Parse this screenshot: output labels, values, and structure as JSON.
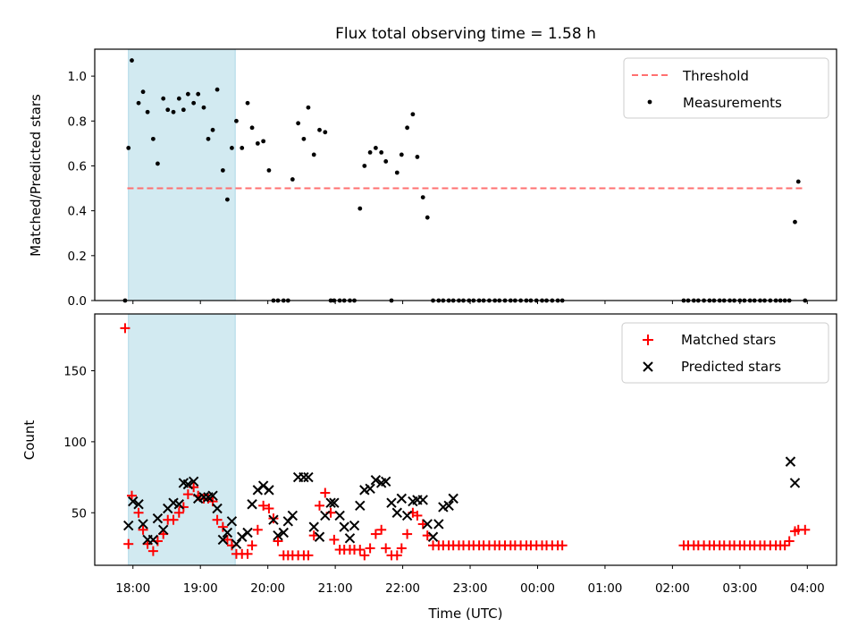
{
  "figure": {
    "title": "Flux total observing time = 1.58 h"
  },
  "colors": {
    "highlight": "#add8e6",
    "threshold": "#ff7070",
    "measurement": "#000000",
    "matched": "#ff0000",
    "predicted": "#000000"
  },
  "chart_data": [
    {
      "type": "scatter",
      "title": "Flux total observing time = 1.58 h",
      "xlabel": "",
      "ylabel": "Matched/Predicted stars",
      "xlim": [
        "17:26",
        "04:26"
      ],
      "ylim": [
        0,
        1.12
      ],
      "yticks": [
        "0.0",
        "0.2",
        "0.4",
        "0.6",
        "0.8",
        "1.0"
      ],
      "highlight_span": [
        "17:56",
        "19:31"
      ],
      "legend": {
        "position": "top-right",
        "entries": [
          "Threshold",
          "Measurements"
        ]
      },
      "threshold": {
        "name": "Threshold",
        "y": 0.5,
        "x_from": "17:55",
        "x_to": "03:58"
      },
      "series": [
        {
          "name": "Measurements",
          "x": [
            "17:53",
            "17:56",
            "17:59",
            "18:05",
            "18:09",
            "18:13",
            "18:18",
            "18:22",
            "18:27",
            "18:31",
            "18:36",
            "18:41",
            "18:45",
            "18:49",
            "18:54",
            "18:58",
            "19:03",
            "19:07",
            "19:11",
            "19:15",
            "19:20",
            "19:24",
            "19:28",
            "19:32",
            "19:37",
            "19:42",
            "19:46",
            "19:51",
            "19:56",
            "20:01",
            "20:05",
            "20:09",
            "20:14",
            "20:18",
            "20:22",
            "20:27",
            "20:32",
            "20:36",
            "20:41",
            "20:46",
            "20:51",
            "20:56",
            "20:59",
            "21:04",
            "21:08",
            "21:13",
            "21:17",
            "21:22",
            "21:26",
            "21:31",
            "21:36",
            "21:41",
            "21:45",
            "21:50",
            "21:55",
            "21:59",
            "22:04",
            "22:09",
            "22:13",
            "22:18",
            "22:22",
            "22:27",
            "22:32",
            "22:36",
            "22:41",
            "22:45",
            "22:50",
            "22:54",
            "22:59",
            "23:03",
            "23:08",
            "23:12",
            "23:17",
            "23:22",
            "23:26",
            "23:31",
            "23:36",
            "23:40",
            "23:45",
            "23:50",
            "23:54",
            "23:59",
            "00:04",
            "00:08",
            "00:13",
            "00:18",
            "00:22",
            "02:10",
            "02:14",
            "02:19",
            "02:23",
            "02:28",
            "02:33",
            "02:37",
            "02:42",
            "02:46",
            "02:51",
            "02:55",
            "03:00",
            "03:04",
            "03:09",
            "03:13",
            "03:18",
            "03:22",
            "03:27",
            "03:32",
            "03:36",
            "03:40",
            "03:44",
            "03:49",
            "03:52",
            "03:58"
          ],
          "y": [
            0.0,
            0.68,
            1.07,
            0.88,
            0.93,
            0.84,
            0.72,
            0.61,
            0.9,
            0.85,
            0.84,
            0.9,
            0.85,
            0.92,
            0.88,
            0.92,
            0.86,
            0.72,
            0.76,
            0.94,
            0.58,
            0.45,
            0.68,
            0.8,
            0.68,
            0.88,
            0.77,
            0.7,
            0.71,
            0.58,
            0.0,
            0.0,
            0.0,
            0.0,
            0.54,
            0.79,
            0.72,
            0.86,
            0.65,
            0.76,
            0.75,
            0.0,
            0.0,
            0.0,
            0.0,
            0.0,
            0.0,
            0.41,
            0.6,
            0.66,
            0.68,
            0.66,
            0.62,
            0.0,
            0.57,
            0.65,
            0.77,
            0.83,
            0.64,
            0.46,
            0.37,
            0.0,
            0.0,
            0.0,
            0.0,
            0.0,
            0.0,
            0.0,
            0.0,
            0.0,
            0.0,
            0.0,
            0.0,
            0.0,
            0.0,
            0.0,
            0.0,
            0.0,
            0.0,
            0.0,
            0.0,
            0.0,
            0.0,
            0.0,
            0.0,
            0.0,
            0.0,
            0.0,
            0.0,
            0.0,
            0.0,
            0.0,
            0.0,
            0.0,
            0.0,
            0.0,
            0.0,
            0.0,
            0.0,
            0.0,
            0.0,
            0.0,
            0.0,
            0.0,
            0.0,
            0.0,
            0.0,
            0.0,
            0.0,
            0.35,
            0.53,
            0.0
          ]
        }
      ]
    },
    {
      "type": "scatter",
      "title": "",
      "xlabel": "Time (UTC)",
      "ylabel": "Count",
      "xlim": [
        "17:26",
        "04:26"
      ],
      "ylim": [
        13,
        190
      ],
      "yticks": [
        "50",
        "100",
        "150"
      ],
      "xticks": [
        "18:00",
        "19:00",
        "20:00",
        "21:00",
        "22:00",
        "23:00",
        "00:00",
        "01:00",
        "02:00",
        "03:00",
        "04:00"
      ],
      "highlight_span": [
        "17:56",
        "19:31"
      ],
      "legend": {
        "position": "top-right",
        "entries": [
          "Matched stars",
          "Predicted stars"
        ]
      },
      "series": [
        {
          "name": "Matched stars",
          "marker": "+",
          "x": [
            "17:53",
            "17:56",
            "17:59",
            "18:05",
            "18:09",
            "18:13",
            "18:18",
            "18:22",
            "18:27",
            "18:31",
            "18:36",
            "18:41",
            "18:45",
            "18:49",
            "18:54",
            "18:58",
            "19:03",
            "19:07",
            "19:11",
            "19:15",
            "19:20",
            "19:24",
            "19:28",
            "19:32",
            "19:37",
            "19:42",
            "19:46",
            "19:51",
            "19:56",
            "20:01",
            "20:05",
            "20:09",
            "20:14",
            "20:18",
            "20:22",
            "20:27",
            "20:32",
            "20:36",
            "20:41",
            "20:46",
            "20:51",
            "20:56",
            "20:59",
            "21:04",
            "21:08",
            "21:13",
            "21:17",
            "21:22",
            "21:26",
            "21:31",
            "21:36",
            "21:41",
            "21:45",
            "21:50",
            "21:55",
            "21:59",
            "22:04",
            "22:09",
            "22:13",
            "22:18",
            "22:22",
            "22:27",
            "22:32",
            "22:36",
            "22:41",
            "22:45",
            "22:50",
            "22:54",
            "22:59",
            "23:03",
            "23:08",
            "23:12",
            "23:17",
            "23:22",
            "23:26",
            "23:31",
            "23:36",
            "23:40",
            "23:45",
            "23:50",
            "23:54",
            "23:59",
            "00:04",
            "00:08",
            "00:13",
            "00:18",
            "00:22",
            "02:10",
            "02:14",
            "02:19",
            "02:23",
            "02:28",
            "02:33",
            "02:37",
            "02:42",
            "02:46",
            "02:51",
            "02:55",
            "03:00",
            "03:04",
            "03:09",
            "03:13",
            "03:18",
            "03:22",
            "03:27",
            "03:32",
            "03:36",
            "03:40",
            "03:44",
            "03:49",
            "03:52",
            "03:58"
          ],
          "y": [
            180,
            28,
            62,
            50,
            38,
            28,
            23,
            30,
            35,
            45,
            45,
            50,
            54,
            63,
            68,
            62,
            60,
            60,
            58,
            45,
            40,
            31,
            27,
            21,
            21,
            21,
            27,
            38,
            55,
            53,
            46,
            30,
            20,
            20,
            20,
            20,
            20,
            20,
            34,
            55,
            64,
            50,
            31,
            24,
            24,
            24,
            24,
            24,
            20,
            25,
            35,
            38,
            25,
            20,
            20,
            25,
            35,
            50,
            48,
            42,
            34,
            27,
            27,
            27,
            27,
            27,
            27,
            27,
            27,
            27,
            27,
            27,
            27,
            27,
            27,
            27,
            27,
            27,
            27,
            27,
            27,
            27,
            27,
            27,
            27,
            27,
            27,
            27,
            27,
            27,
            27,
            27,
            27,
            27,
            27,
            27,
            27,
            27,
            27,
            27,
            27,
            27,
            27,
            27,
            27,
            27,
            27,
            27,
            30,
            37,
            38,
            38
          ]
        },
        {
          "name": "Predicted stars",
          "marker": "x",
          "x": [
            "17:56",
            "18:00",
            "18:05",
            "18:09",
            "18:13",
            "18:18",
            "18:22",
            "18:27",
            "18:31",
            "18:36",
            "18:41",
            "18:45",
            "18:49",
            "18:54",
            "18:58",
            "19:03",
            "19:07",
            "19:11",
            "19:15",
            "19:20",
            "19:24",
            "19:28",
            "19:32",
            "19:37",
            "19:42",
            "19:46",
            "19:51",
            "19:56",
            "20:01",
            "20:05",
            "20:09",
            "20:14",
            "20:18",
            "20:22",
            "20:27",
            "20:32",
            "20:36",
            "20:41",
            "20:46",
            "20:51",
            "20:56",
            "20:59",
            "21:04",
            "21:08",
            "21:13",
            "21:17",
            "21:22",
            "21:26",
            "21:31",
            "21:36",
            "21:41",
            "21:45",
            "21:50",
            "21:55",
            "21:59",
            "22:04",
            "22:09",
            "22:13",
            "22:18",
            "22:22",
            "22:27",
            "22:32",
            "22:36",
            "22:41",
            "22:45",
            "03:45",
            "03:49"
          ],
          "y": [
            41,
            58,
            56,
            42,
            31,
            31,
            46,
            38,
            53,
            57,
            56,
            71,
            70,
            72,
            60,
            61,
            61,
            62,
            53,
            31,
            36,
            44,
            28,
            33,
            36,
            56,
            66,
            69,
            66,
            45,
            34,
            36,
            44,
            48,
            75,
            75,
            75,
            40,
            33,
            48,
            57,
            57,
            48,
            40,
            32,
            41,
            55,
            66,
            67,
            73,
            71,
            72,
            57,
            50,
            60,
            48,
            58,
            59,
            59,
            42,
            33,
            42,
            54,
            55,
            60,
            86,
            71
          ]
        }
      ]
    }
  ]
}
